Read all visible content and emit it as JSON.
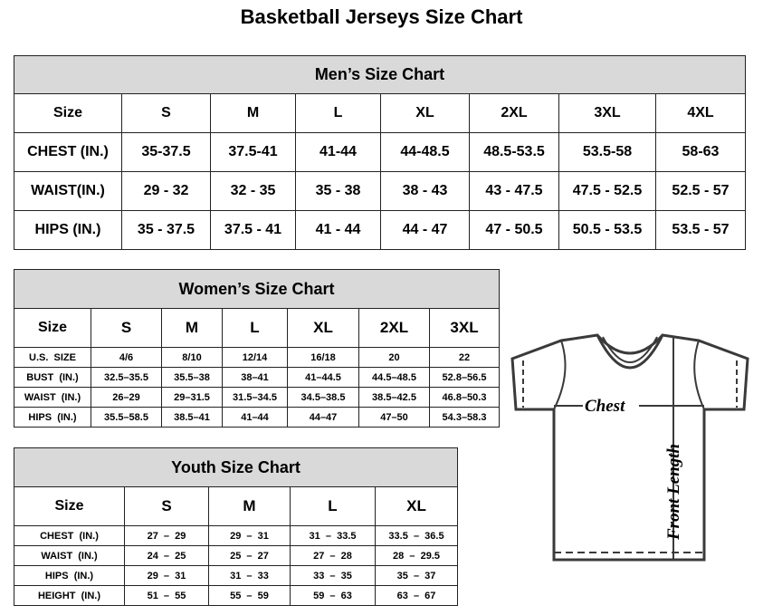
{
  "title": "Basketball Jerseys Size Chart",
  "men": {
    "caption": "Men’s Size Chart",
    "header": [
      "Size",
      "S",
      "M",
      "L",
      "XL",
      "2XL",
      "3XL",
      "4XL"
    ],
    "rows": [
      [
        "CHEST (IN.)",
        "35-37.5",
        "37.5-41",
        "41-44",
        "44-48.5",
        "48.5-53.5",
        "53.5-58",
        "58-63"
      ],
      [
        "WAIST(IN.)",
        "29 - 32",
        "32 - 35",
        "35 - 38",
        "38 - 43",
        "43 - 47.5",
        "47.5 - 52.5",
        "52.5 - 57"
      ],
      [
        "HIPS (IN.)",
        "35 - 37.5",
        "37.5 - 41",
        "41 - 44",
        "44 - 47",
        "47 - 50.5",
        "50.5 - 53.5",
        "53.5 - 57"
      ]
    ]
  },
  "women": {
    "caption": "Women’s Size Chart",
    "header": [
      "Size",
      "S",
      "M",
      "L",
      "XL",
      "2XL",
      "3XL"
    ],
    "rows": [
      [
        "U.S.  SIZE",
        "4/6",
        "8/10",
        "12/14",
        "16/18",
        "20",
        "22"
      ],
      [
        "BUST  (IN.)",
        "32.5–35.5",
        "35.5–38",
        "38–41",
        "41–44.5",
        "44.5–48.5",
        "52.8–56.5"
      ],
      [
        "WAIST  (IN.)",
        "26–29",
        "29–31.5",
        "31.5–34.5",
        "34.5–38.5",
        "38.5–42.5",
        "46.8–50.3"
      ],
      [
        "HIPS  (IN.)",
        "35.5–58.5",
        "38.5–41",
        "41–44",
        "44–47",
        "47–50",
        "54.3–58.3"
      ]
    ]
  },
  "youth": {
    "caption": "Youth Size Chart",
    "header": [
      "Size",
      "S",
      "M",
      "L",
      "XL"
    ],
    "rows": [
      [
        "CHEST  (IN.)",
        "27  –  29",
        "29  –  31",
        "31  –  33.5",
        "33.5  –  36.5"
      ],
      [
        "WAIST  (IN.)",
        "24  –  25",
        "25  –  27",
        "27  –  28",
        "28  –  29.5"
      ],
      [
        "HIPS  (IN.)",
        "29  –  31",
        "31  –  33",
        "33  –  35",
        "35  –  37"
      ],
      [
        "HEIGHT  (IN.)",
        "51  –  55",
        "55  –  59",
        "59  –  63",
        "63  –  67"
      ]
    ]
  },
  "jersey": {
    "chest_label": "Chest",
    "length_label": "Front Length"
  }
}
